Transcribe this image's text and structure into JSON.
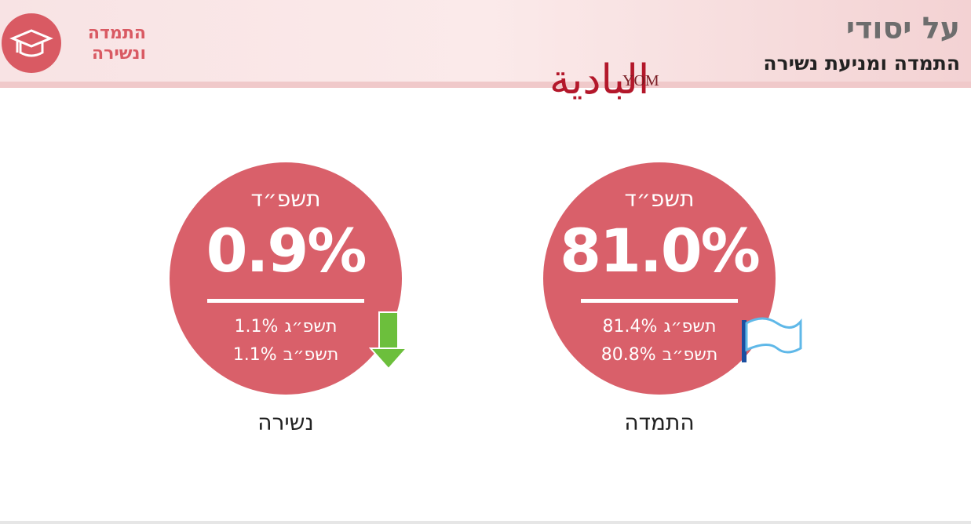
{
  "header": {
    "title": "על יסודי",
    "subtitle": "התמדה ומניעת נשירה",
    "badge": [
      "התמדה",
      "ונשירה"
    ],
    "logo_arabic": "البادية",
    "logo_latin": "YOM"
  },
  "cards": [
    {
      "year": "תשפ״ד",
      "value": "0.9%",
      "rows": [
        {
          "label": "תשפ״ג",
          "value": "1.1%"
        },
        {
          "label": "תשפ״ב",
          "value": "1.1%"
        }
      ],
      "caption": "נשירה"
    },
    {
      "year": "תשפ״ד",
      "value": "81.0%",
      "rows": [
        {
          "label": "תשפ״ג",
          "value": "81.4%"
        },
        {
          "label": "תשפ״ב",
          "value": "80.8%"
        }
      ],
      "caption": "התמדה"
    }
  ]
}
